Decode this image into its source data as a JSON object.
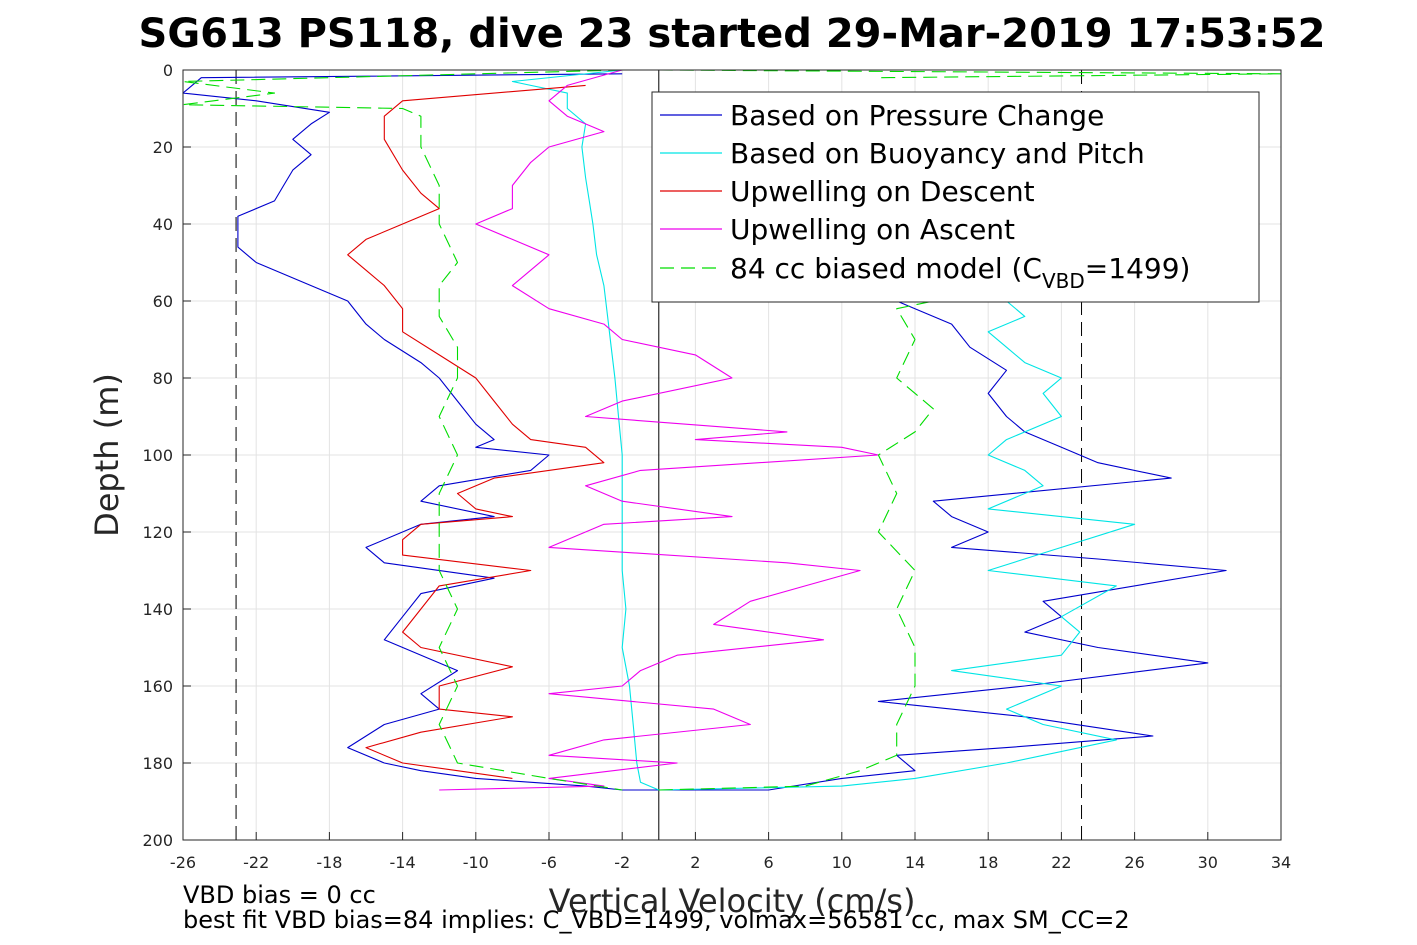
{
  "chart_data": {
    "type": "line",
    "title": "SG613 PS118, dive 23 started 29-Mar-2019 17:53:52",
    "xlabel": "Vertical Velocity (cm/s)",
    "ylabel": "Depth (m)",
    "xlim": [
      -26,
      34
    ],
    "ylim": [
      0,
      200
    ],
    "y_reversed": true,
    "grid": true,
    "legend_position": "top-right",
    "xticks": [
      "-26",
      "-22",
      "-18",
      "-14",
      "-10",
      "-6",
      "-2",
      "2",
      "6",
      "10",
      "14",
      "18",
      "22",
      "26",
      "30",
      "34"
    ],
    "yticks": [
      "0",
      "20",
      "40",
      "60",
      "80",
      "100",
      "120",
      "140",
      "160",
      "180",
      "200"
    ],
    "reference_lines": {
      "zero_x": 0,
      "dashed_x": [
        -23.1,
        23.1
      ]
    },
    "legend": {
      "pressure": "Based on Pressure Change",
      "buoyancy": "Based on Buoyancy and Pitch",
      "up_descent": "Upwelling on Descent",
      "up_ascent": "Upwelling on Ascent",
      "model_main": "84 cc biased model (C",
      "model_sub": "VBD",
      "model_tail": "=1499)"
    },
    "series": [
      {
        "key": "pressure_descent",
        "color": "#0000cd",
        "dash": "",
        "points": [
          [
            -2,
            1
          ],
          [
            -25,
            2
          ],
          [
            -26,
            6
          ],
          [
            -22,
            8
          ],
          [
            -18,
            11
          ],
          [
            -19,
            14
          ],
          [
            -20,
            18
          ],
          [
            -19,
            22
          ],
          [
            -20,
            26
          ],
          [
            -20.5,
            30
          ],
          [
            -21,
            34
          ],
          [
            -23,
            38
          ],
          [
            -23,
            42
          ],
          [
            -23,
            46
          ],
          [
            -22,
            50
          ],
          [
            -19,
            56
          ],
          [
            -17,
            60
          ],
          [
            -16,
            66
          ],
          [
            -15,
            70
          ],
          [
            -13,
            76
          ],
          [
            -12,
            80
          ],
          [
            -11,
            86
          ],
          [
            -10,
            92
          ],
          [
            -9,
            96
          ],
          [
            -10,
            98
          ],
          [
            -6,
            100
          ],
          [
            -7,
            104
          ],
          [
            -12,
            108
          ],
          [
            -13,
            112
          ],
          [
            -9,
            116
          ],
          [
            -13,
            118
          ],
          [
            -16,
            124
          ],
          [
            -15,
            128
          ],
          [
            -9,
            132
          ],
          [
            -13,
            136
          ],
          [
            -14,
            142
          ],
          [
            -15,
            148
          ],
          [
            -11,
            156
          ],
          [
            -13,
            162
          ],
          [
            -12,
            166
          ],
          [
            -15,
            170
          ],
          [
            -17,
            176
          ],
          [
            -15,
            180
          ],
          [
            -13,
            182
          ],
          [
            -10,
            184
          ],
          [
            -4,
            186
          ],
          [
            -2,
            187
          ],
          [
            0,
            187
          ]
        ]
      },
      {
        "key": "pressure_ascent",
        "color": "#0000cd",
        "dash": "",
        "points": [
          [
            0,
            187
          ],
          [
            6,
            187
          ],
          [
            10,
            184
          ],
          [
            14,
            182
          ],
          [
            13,
            178
          ],
          [
            19,
            176
          ],
          [
            27,
            173
          ],
          [
            20,
            168
          ],
          [
            12,
            164
          ],
          [
            20,
            160
          ],
          [
            30,
            154
          ],
          [
            24,
            150
          ],
          [
            20,
            146
          ],
          [
            22,
            142
          ],
          [
            21,
            138
          ],
          [
            31,
            130
          ],
          [
            24,
            127
          ],
          [
            16,
            124
          ],
          [
            18,
            120
          ],
          [
            16,
            116
          ],
          [
            15,
            112
          ],
          [
            28,
            106
          ],
          [
            24,
            102
          ],
          [
            22,
            98
          ],
          [
            20,
            94
          ],
          [
            19,
            90
          ],
          [
            18,
            84
          ],
          [
            19,
            78
          ],
          [
            17,
            72
          ],
          [
            16,
            66
          ],
          [
            14,
            62
          ],
          [
            13,
            60
          ],
          [
            16,
            58
          ],
          [
            17,
            56
          ]
        ]
      },
      {
        "key": "buoyancy_descent",
        "color": "#00e5e5",
        "dash": "",
        "points": [
          [
            -2,
            0
          ],
          [
            -8,
            3
          ],
          [
            -5,
            6
          ],
          [
            -5,
            10
          ],
          [
            -4,
            14
          ],
          [
            -4.2,
            20
          ],
          [
            -4,
            28
          ],
          [
            -3.8,
            34
          ],
          [
            -3.6,
            40
          ],
          [
            -3.4,
            48
          ],
          [
            -3,
            56
          ],
          [
            -2.8,
            64
          ],
          [
            -2.6,
            72
          ],
          [
            -2.4,
            80
          ],
          [
            -2.2,
            90
          ],
          [
            -2,
            100
          ],
          [
            -2,
            110
          ],
          [
            -2,
            120
          ],
          [
            -2,
            130
          ],
          [
            -1.8,
            140
          ],
          [
            -2,
            150
          ],
          [
            -1.6,
            160
          ],
          [
            -1.4,
            170
          ],
          [
            -1.2,
            180
          ],
          [
            -1,
            185
          ],
          [
            0,
            187
          ]
        ]
      },
      {
        "key": "buoyancy_ascent",
        "color": "#00e5e5",
        "dash": "",
        "points": [
          [
            0,
            187
          ],
          [
            10,
            186
          ],
          [
            14,
            184
          ],
          [
            19,
            180
          ],
          [
            25,
            174
          ],
          [
            21,
            170
          ],
          [
            19,
            166
          ],
          [
            22,
            160
          ],
          [
            16,
            156
          ],
          [
            22,
            152
          ],
          [
            23,
            146
          ],
          [
            22,
            142
          ],
          [
            25,
            134
          ],
          [
            18,
            130
          ],
          [
            22,
            124
          ],
          [
            26,
            118
          ],
          [
            18,
            114
          ],
          [
            21,
            108
          ],
          [
            20,
            104
          ],
          [
            18,
            100
          ],
          [
            19,
            96
          ],
          [
            22,
            90
          ],
          [
            21,
            84
          ],
          [
            22,
            80
          ],
          [
            20,
            76
          ],
          [
            19,
            72
          ],
          [
            18,
            68
          ],
          [
            20,
            64
          ],
          [
            19,
            60
          ],
          [
            19,
            58
          ]
        ]
      },
      {
        "key": "upwelling_descent",
        "color": "#e00000",
        "dash": "",
        "points": [
          [
            -4,
            4
          ],
          [
            -14,
            8
          ],
          [
            -15,
            12
          ],
          [
            -15,
            18
          ],
          [
            -14,
            26
          ],
          [
            -13,
            32
          ],
          [
            -12,
            36
          ],
          [
            -14,
            40
          ],
          [
            -16,
            44
          ],
          [
            -17,
            48
          ],
          [
            -16,
            52
          ],
          [
            -15,
            56
          ],
          [
            -14,
            62
          ],
          [
            -14,
            68
          ],
          [
            -12,
            74
          ],
          [
            -10,
            80
          ],
          [
            -9,
            86
          ],
          [
            -8,
            92
          ],
          [
            -7,
            96
          ],
          [
            -4,
            98
          ],
          [
            -3,
            102
          ],
          [
            -9,
            106
          ],
          [
            -11,
            110
          ],
          [
            -10,
            114
          ],
          [
            -8,
            116
          ],
          [
            -13,
            118
          ],
          [
            -14,
            122
          ],
          [
            -14,
            126
          ],
          [
            -7,
            130
          ],
          [
            -12,
            134
          ],
          [
            -13,
            140
          ],
          [
            -14,
            146
          ],
          [
            -13,
            150
          ],
          [
            -8,
            155
          ],
          [
            -12,
            160
          ],
          [
            -12,
            166
          ],
          [
            -8,
            168
          ],
          [
            -13,
            172
          ],
          [
            -16,
            176
          ],
          [
            -14,
            180
          ],
          [
            -11,
            182
          ],
          [
            -8,
            184
          ]
        ]
      },
      {
        "key": "upwelling_ascent",
        "color": "#ee00ee",
        "dash": "",
        "points": [
          [
            -2,
            0
          ],
          [
            -5,
            4
          ],
          [
            -6,
            8
          ],
          [
            -5,
            12
          ],
          [
            -3,
            16
          ],
          [
            -6,
            20
          ],
          [
            -7,
            24
          ],
          [
            -8,
            30
          ],
          [
            -8,
            36
          ],
          [
            -10,
            40
          ],
          [
            -8,
            44
          ],
          [
            -6,
            48
          ],
          [
            -7,
            52
          ],
          [
            -8,
            56
          ],
          [
            -6,
            62
          ],
          [
            -3,
            66
          ],
          [
            -2,
            70
          ],
          [
            2,
            74
          ],
          [
            4,
            80
          ],
          [
            -2,
            86
          ],
          [
            -4,
            90
          ],
          [
            7,
            94
          ],
          [
            2,
            96
          ],
          [
            10,
            98
          ],
          [
            12,
            100
          ],
          [
            -1,
            104
          ],
          [
            -4,
            108
          ],
          [
            -2,
            112
          ],
          [
            4,
            116
          ],
          [
            -3,
            118
          ],
          [
            -6,
            124
          ],
          [
            7,
            128
          ],
          [
            11,
            130
          ],
          [
            8,
            134
          ],
          [
            5,
            138
          ],
          [
            3,
            144
          ],
          [
            9,
            148
          ],
          [
            1,
            152
          ],
          [
            -1,
            156
          ],
          [
            -2,
            160
          ],
          [
            -6,
            162
          ],
          [
            3,
            166
          ],
          [
            5,
            170
          ],
          [
            -3,
            174
          ],
          [
            -6,
            178
          ],
          [
            1,
            180
          ],
          [
            -6,
            184
          ],
          [
            -3,
            186
          ],
          [
            -12,
            187
          ]
        ]
      },
      {
        "key": "model_descent",
        "color": "#00dd00",
        "dash": "14,7",
        "points": [
          [
            -2,
            0
          ],
          [
            -26,
            3
          ],
          [
            -21,
            6
          ],
          [
            -26,
            9
          ],
          [
            -14,
            10
          ],
          [
            -13,
            12
          ],
          [
            -13,
            20
          ],
          [
            -12,
            30
          ],
          [
            -12,
            40
          ],
          [
            -11,
            50
          ],
          [
            -12,
            56
          ],
          [
            -12,
            64
          ],
          [
            -11,
            72
          ],
          [
            -11,
            80
          ],
          [
            -12,
            90
          ],
          [
            -11,
            100
          ],
          [
            -12,
            110
          ],
          [
            -12,
            120
          ],
          [
            -12,
            130
          ],
          [
            -11,
            140
          ],
          [
            -12,
            150
          ],
          [
            -11,
            160
          ],
          [
            -12,
            170
          ],
          [
            -11,
            180
          ],
          [
            -6,
            184
          ],
          [
            -2,
            187
          ]
        ]
      },
      {
        "key": "model_ascent",
        "color": "#00dd00",
        "dash": "14,7",
        "points": [
          [
            0,
            187
          ],
          [
            8,
            186
          ],
          [
            11,
            182
          ],
          [
            13,
            178
          ],
          [
            13,
            170
          ],
          [
            14,
            160
          ],
          [
            14,
            150
          ],
          [
            13,
            140
          ],
          [
            14,
            130
          ],
          [
            12,
            120
          ],
          [
            13,
            110
          ],
          [
            12,
            100
          ],
          [
            14,
            94
          ],
          [
            15,
            88
          ],
          [
            13,
            80
          ],
          [
            14,
            70
          ],
          [
            13,
            62
          ],
          [
            17,
            58
          ]
        ]
      },
      {
        "key": "model_surface",
        "color": "#00dd00",
        "dash": "14,7",
        "points": [
          [
            0,
            0
          ],
          [
            34,
            1
          ],
          [
            12,
            2
          ]
        ]
      }
    ]
  },
  "notes": {
    "vbd_bias": "VBD bias = 0 cc",
    "best_fit": "best fit VBD bias=84 implies: C_VBD=1499, volmax=56581 cc, max SM_CC=2"
  }
}
